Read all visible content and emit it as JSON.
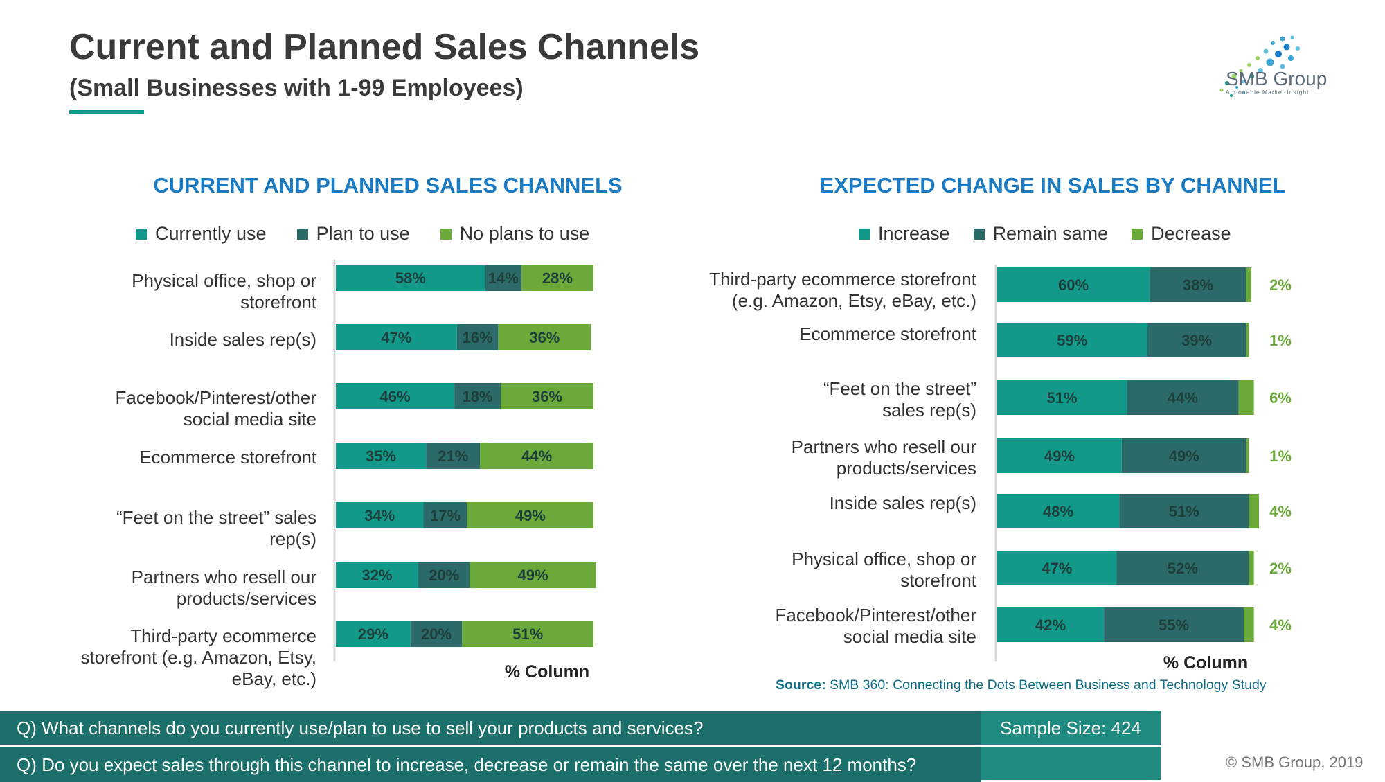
{
  "header": {
    "title": "Current and Planned Sales Channels",
    "subtitle": "(Small Businesses with 1-99 Employees)"
  },
  "logo": {
    "name": "SMB Group",
    "tagline": "Actionable Market Insight"
  },
  "colors": {
    "teal": "#12998a",
    "dark_teal": "#2b6a68",
    "green": "#6aa93a",
    "heading_blue": "#1b7cc3",
    "question_bar": "#1c6f6b"
  },
  "chart_data": [
    {
      "type": "bar",
      "orientation": "horizontal",
      "stacked": true,
      "title": "CURRENT AND PLANNED SALES CHANNELS",
      "axis_note": "% Column",
      "legend_position": "top",
      "categories": [
        "Physical office, shop or storefront",
        "Inside sales rep(s)",
        "Facebook/Pinterest/other social media site",
        "Ecommerce storefront",
        "“Feet on the street” sales rep(s)",
        "Partners who resell our products/services",
        "Third-party ecommerce storefront (e.g. Amazon, Etsy, eBay, etc.)"
      ],
      "category_lines": [
        [
          "Physical office, shop or",
          "storefront"
        ],
        [
          "Inside sales rep(s)"
        ],
        [
          "Facebook/Pinterest/other",
          "social media site"
        ],
        [
          "Ecommerce storefront"
        ],
        [
          "“Feet on the street” sales",
          "rep(s)"
        ],
        [
          "Partners who resell our",
          "products/services"
        ],
        [
          "Third-party ecommerce",
          "storefront (e.g. Amazon, Etsy,",
          "eBay, etc.)"
        ]
      ],
      "series": [
        {
          "name": "Currently use",
          "color": "#12998a",
          "values": [
            58,
            47,
            46,
            35,
            34,
            32,
            29
          ]
        },
        {
          "name": "Plan to use",
          "color": "#2b6a68",
          "values": [
            14,
            16,
            18,
            21,
            17,
            20,
            20
          ]
        },
        {
          "name": "No plans to use",
          "color": "#6aa93a",
          "values": [
            28,
            36,
            36,
            44,
            49,
            49,
            51
          ]
        }
      ],
      "unit": "%"
    },
    {
      "type": "bar",
      "orientation": "horizontal",
      "stacked": true,
      "title": "EXPECTED CHANGE IN SALES BY CHANNEL",
      "axis_note": "% Column",
      "legend_position": "top",
      "categories": [
        "Third-party ecommerce storefront (e.g. Amazon, Etsy, eBay, etc.)",
        "Ecommerce storefront",
        "“Feet on the street” sales rep(s)",
        "Partners who resell our products/services",
        "Inside sales rep(s)",
        "Physical office, shop or storefront",
        "Facebook/Pinterest/other social media site"
      ],
      "category_lines": [
        [
          "Third-party ecommerce storefront",
          "(e.g. Amazon, Etsy, eBay, etc.)"
        ],
        [
          "Ecommerce storefront"
        ],
        [
          "“Feet on the street”",
          "sales rep(s)"
        ],
        [
          "Partners who resell our",
          "products/services"
        ],
        [
          "Inside sales rep(s)"
        ],
        [
          "Physical office, shop or",
          "storefront"
        ],
        [
          "Facebook/Pinterest/other",
          "social media site"
        ]
      ],
      "series": [
        {
          "name": "Increase",
          "color": "#12998a",
          "values": [
            60,
            59,
            51,
            49,
            48,
            47,
            42
          ]
        },
        {
          "name": "Remain same",
          "color": "#2b6a68",
          "values": [
            38,
            39,
            44,
            49,
            51,
            52,
            55
          ]
        },
        {
          "name": "Decrease",
          "color": "#6aa93a",
          "values": [
            2,
            1,
            6,
            1,
            4,
            2,
            4
          ]
        }
      ],
      "unit": "%"
    }
  ],
  "source": {
    "label": "Source:",
    "text": "SMB 360: Connecting the Dots Between Business and Technology Study"
  },
  "footer": {
    "question1": "Q) What channels do you currently use/plan to use to sell your products and services?",
    "question2": "Q) Do you expect sales through this channel to increase, decrease or remain the same over the next 12 months?",
    "sample_size": "Sample Size: 424",
    "copyright": "© SMB Group, 2019"
  }
}
